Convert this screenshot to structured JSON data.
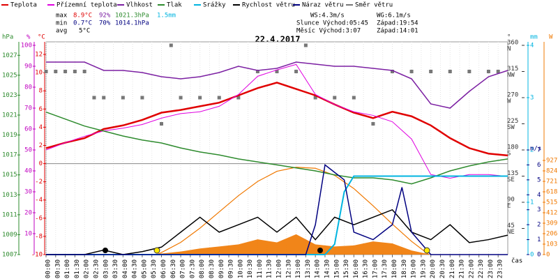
{
  "chart_data": {
    "type": "line",
    "title": "22.4.2017",
    "x_label": "čas",
    "xlim": [
      0,
      24
    ],
    "xticks": [
      {
        "value": 0,
        "label": "00:00"
      },
      {
        "value": 0.5,
        "label": "00:30"
      },
      {
        "value": 1,
        "label": "01:00"
      },
      {
        "value": 1.5,
        "label": "01:30"
      },
      {
        "value": 2,
        "label": "02:00"
      },
      {
        "value": 2.5,
        "label": "02:30"
      },
      {
        "value": 3,
        "label": "03:00"
      },
      {
        "value": 3.5,
        "label": "03:30"
      },
      {
        "value": 4,
        "label": "04:00"
      },
      {
        "value": 4.5,
        "label": "04:30"
      },
      {
        "value": 5,
        "label": "05:00"
      },
      {
        "value": 5.5,
        "label": "05:30"
      },
      {
        "value": 6,
        "label": "06:00"
      },
      {
        "value": 6.5,
        "label": "06:30"
      },
      {
        "value": 7,
        "label": "07:00"
      },
      {
        "value": 7.5,
        "label": "07:30"
      },
      {
        "value": 8,
        "label": "08:00"
      },
      {
        "value": 8.5,
        "label": "08:30"
      },
      {
        "value": 9,
        "label": "09:00"
      },
      {
        "value": 9.5,
        "label": "09:30"
      },
      {
        "value": 10,
        "label": "10:00"
      },
      {
        "value": 10.5,
        "label": "10:30"
      },
      {
        "value": 11,
        "label": "11:00"
      },
      {
        "value": 11.5,
        "label": "11:30"
      },
      {
        "value": 12,
        "label": "12:00"
      },
      {
        "value": 12.5,
        "label": "12:30"
      },
      {
        "value": 13,
        "label": "13:00"
      },
      {
        "value": 13.5,
        "label": "13:30"
      },
      {
        "value": 14,
        "label": "14:00"
      },
      {
        "value": 14.5,
        "label": "14:30"
      },
      {
        "value": 15,
        "label": "15:00"
      },
      {
        "value": 15.5,
        "label": "15:30"
      },
      {
        "value": 16,
        "label": "16:00"
      },
      {
        "value": 16.5,
        "label": "16:30"
      },
      {
        "value": 17,
        "label": "17:00"
      },
      {
        "value": 17.5,
        "label": "17:30"
      },
      {
        "value": 18,
        "label": "18:00"
      },
      {
        "value": 18.5,
        "label": "18:30"
      },
      {
        "value": 19,
        "label": "19:00"
      },
      {
        "value": 19.5,
        "label": "19:30"
      },
      {
        "value": 20,
        "label": "20:00"
      },
      {
        "value": 20.5,
        "label": "20:30"
      },
      {
        "value": 21,
        "label": "21:00"
      },
      {
        "value": 21.5,
        "label": "21:30"
      },
      {
        "value": 22,
        "label": "22:00"
      },
      {
        "value": 22.5,
        "label": "22:30"
      },
      {
        "value": 23,
        "label": "23:00"
      },
      {
        "value": 23.5,
        "label": "23:30"
      }
    ],
    "axes": {
      "pressure": {
        "unit": "hPa",
        "color": "#2e8b2e",
        "lim": [
          1007,
          1028
        ],
        "ticks": [
          1007,
          1009,
          1011,
          1013,
          1015,
          1017,
          1019,
          1021,
          1023,
          1025,
          1027
        ]
      },
      "humidity": {
        "unit": "%",
        "color": "#c000c0",
        "lim": [
          0,
          100
        ],
        "ticks": [
          10,
          20,
          30,
          40,
          50,
          60,
          70,
          80,
          90,
          100
        ]
      },
      "temp": {
        "unit": "°C",
        "color": "#e00000",
        "lim": [
          -10,
          13
        ],
        "ticks": [
          -10,
          -8,
          -6,
          -4,
          -2,
          0,
          2,
          4,
          6,
          8,
          10,
          12
        ]
      },
      "direction": {
        "unit": "°",
        "color": "#333333",
        "lim": [
          0,
          360
        ],
        "ticks": [
          45,
          90,
          135,
          180,
          225,
          270,
          315,
          360
        ],
        "compass": [
          "NE",
          "E",
          "SE",
          "S",
          "SW",
          "W",
          "NW",
          "N"
        ]
      },
      "rain": {
        "unit": "mm",
        "color": "#00b4e0",
        "lim": [
          0,
          4
        ],
        "ticks": [
          0,
          1,
          2,
          3,
          4
        ]
      },
      "wind": {
        "unit": "m/s",
        "color": "#000080",
        "lim": [
          0,
          14
        ],
        "ticks": [
          0,
          1,
          2,
          3,
          4,
          5,
          6,
          7
        ]
      },
      "solar": {
        "unit": "W",
        "color": "#f07800",
        "lim": [
          0,
          2060
        ],
        "ticks": [
          0,
          103,
          206,
          309,
          412,
          515,
          618,
          721,
          824,
          927
        ]
      }
    },
    "x": [
      0,
      1,
      2,
      3,
      4,
      5,
      6,
      7,
      8,
      9,
      10,
      11,
      12,
      13,
      14,
      15,
      16,
      17,
      18,
      19,
      20,
      21,
      22,
      23,
      24
    ],
    "series": [
      {
        "name": "Teplota",
        "color": "#e00000",
        "axis": "temp",
        "width": 2.5,
        "values": [
          1.7,
          2.3,
          2.8,
          3.8,
          4.2,
          4.8,
          5.6,
          5.9,
          6.3,
          6.7,
          7.5,
          8.3,
          8.9,
          8.2,
          7.5,
          6.5,
          5.6,
          5.0,
          5.7,
          5.2,
          4.2,
          2.8,
          1.7,
          1.1,
          0.9
        ]
      },
      {
        "name": "Přízemní teplota",
        "color": "#e000e0",
        "axis": "temp",
        "width": 1,
        "values": [
          1.5,
          2.3,
          3.0,
          3.6,
          3.9,
          4.3,
          5.0,
          5.5,
          5.7,
          6.3,
          7.6,
          9.6,
          10.3,
          10.9,
          7.6,
          6.5,
          5.7,
          5.3,
          4.6,
          2.7,
          -1.2,
          -1.6,
          -1.2,
          -1.2,
          -1.4
        ]
      },
      {
        "name": "Vlhkost",
        "color": "#7b1fa2",
        "axis": "humidity",
        "width": 1.5,
        "values": [
          92,
          92,
          92,
          88,
          88,
          87,
          85,
          84,
          85,
          87,
          90,
          88,
          89,
          92,
          91,
          90,
          90,
          89,
          88,
          84,
          72,
          70,
          78,
          85,
          88
        ]
      },
      {
        "name": "Tlak",
        "color": "#2e8b2e",
        "axis": "pressure",
        "width": 1.5,
        "values": [
          1021.3,
          1020.6,
          1019.9,
          1019.4,
          1018.9,
          1018.5,
          1018.2,
          1017.7,
          1017.3,
          1017.0,
          1016.6,
          1016.3,
          1016.0,
          1015.7,
          1015.4,
          1015.0,
          1014.7,
          1014.7,
          1014.5,
          1014.1,
          1014.7,
          1015.4,
          1015.9,
          1016.3,
          1016.6
        ]
      },
      {
        "name": "Srážky",
        "color": "#00b4e0",
        "axis": "rain",
        "width": 2,
        "x": [
          0,
          14.5,
          15,
          15.5,
          16,
          24
        ],
        "values": [
          0,
          0,
          0.2,
          1.2,
          1.5,
          1.5
        ]
      },
      {
        "name": "Rychlost větru",
        "color": "#000000",
        "axis": "wind",
        "width": 1.5,
        "values": [
          0,
          0,
          0,
          0.3,
          0,
          0.2,
          0.5,
          1.5,
          2.5,
          1.5,
          2,
          2.5,
          1.5,
          2.5,
          1,
          2.5,
          2,
          2.5,
          3,
          1.5,
          1,
          2,
          0.8,
          1,
          1.3
        ]
      },
      {
        "name": "Náraz větru",
        "color": "#000080",
        "axis": "wind",
        "width": 1.5,
        "x": [
          0,
          13.5,
          14,
          14.5,
          15,
          15.5,
          16,
          17,
          18,
          18.5,
          19,
          20,
          24
        ],
        "values": [
          0,
          0,
          2,
          6,
          5.5,
          5,
          1.5,
          1,
          2,
          4.5,
          1.5,
          0,
          0
        ]
      },
      {
        "name": "Směr větru",
        "color": "#777777",
        "axis": "direction",
        "kind": "points",
        "x": [
          0,
          0.5,
          1,
          1.5,
          2,
          2.5,
          3,
          4,
          5,
          6,
          6.5,
          7,
          8,
          9,
          10,
          11,
          12,
          13,
          13.5,
          14,
          15,
          16,
          17,
          18,
          19,
          20,
          21,
          22,
          23,
          23.5
        ],
        "values": [
          315,
          315,
          315,
          315,
          315,
          270,
          270,
          270,
          270,
          225,
          360,
          270,
          270,
          270,
          270,
          315,
          315,
          315,
          360,
          270,
          270,
          270,
          225,
          315,
          315,
          315,
          315,
          315,
          315,
          315
        ]
      }
    ],
    "solar_max": {
      "color": "#f07800",
      "axis": "solar",
      "x": [
        5.75,
        6,
        7,
        8,
        9,
        10,
        11,
        12,
        13,
        14,
        15,
        16,
        17,
        18,
        19,
        19.9
      ],
      "values": [
        0,
        20,
        120,
        260,
        420,
        580,
        720,
        820,
        860,
        850,
        780,
        650,
        480,
        300,
        130,
        0
      ]
    },
    "solar_fill": {
      "color": "#f07800",
      "axis": "solar",
      "x": [
        5,
        6,
        7,
        8,
        9,
        10,
        11,
        12,
        13,
        14,
        15,
        16,
        17,
        18,
        19,
        20
      ],
      "values": [
        0,
        10,
        30,
        60,
        80,
        100,
        150,
        120,
        200,
        100,
        80,
        90,
        130,
        110,
        40,
        0
      ]
    },
    "stats": {
      "max": {
        "label": "max",
        "temp": "8.9°C",
        "hum": "92%",
        "press": "1021.3hPa",
        "rain": "1.5mm"
      },
      "min": {
        "label": "min",
        "temp": "0.7°C",
        "hum": "70%",
        "press": "1014.1hPa"
      },
      "avg": {
        "label": "avg",
        "temp": "5°C"
      },
      "ws": "WS:4.3m/s",
      "wg": "WG:6.1m/s",
      "sun": "Slunce Východ:05:45",
      "sunset": "Západ:19:54",
      "moon": "Měsíc Východ:3:07",
      "moonset": "Západ:14:01"
    }
  }
}
